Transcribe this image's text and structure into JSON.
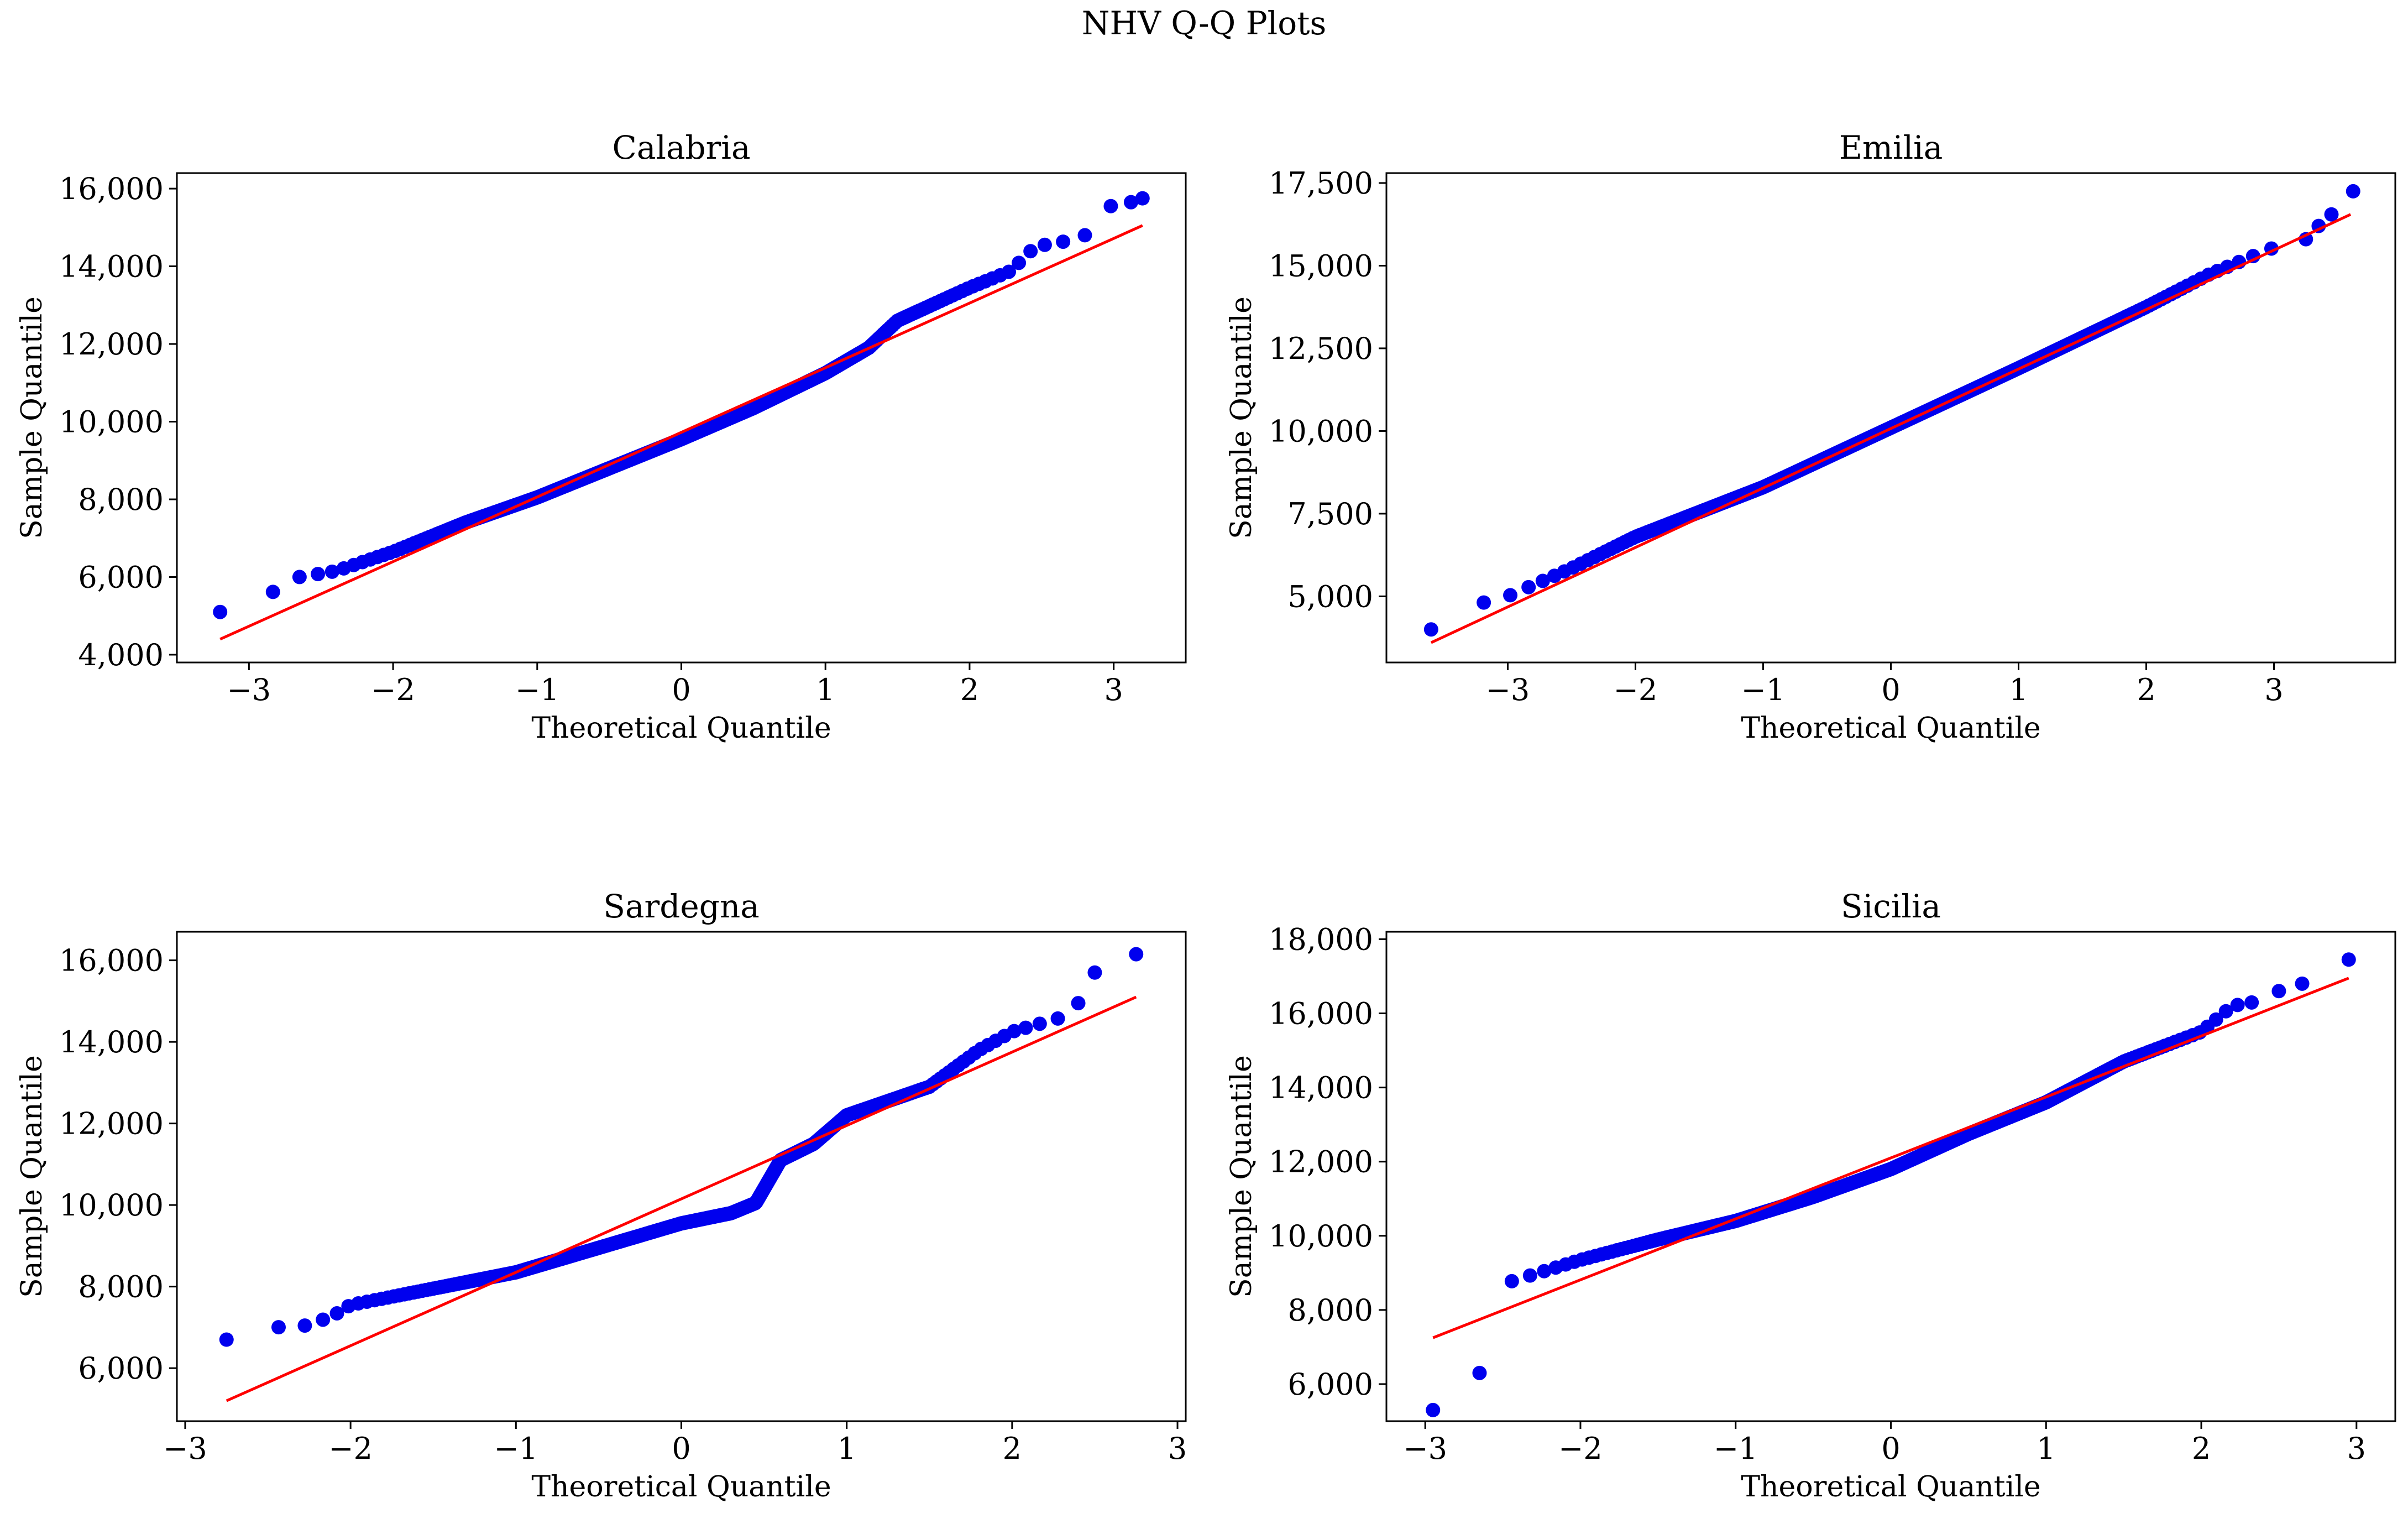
{
  "figure": {
    "title": "NHV Q-Q Plots"
  },
  "colors": {
    "points": "#0000ee",
    "line": "#ff0000",
    "axes": "#000000"
  },
  "chart_data": [
    {
      "type": "scatter",
      "title": "Calabria",
      "xlabel": "Theoretical Quantile",
      "ylabel": "Sample Quantile",
      "xlim": [
        -3.5,
        3.5
      ],
      "ylim": [
        3800,
        16400
      ],
      "xticks": [
        -3,
        -2,
        -1,
        0,
        1,
        2,
        3
      ],
      "xtick_labels": [
        "−3",
        "−2",
        "−1",
        "0",
        "1",
        "2",
        "3"
      ],
      "yticks": [
        4000,
        6000,
        8000,
        10000,
        12000,
        14000,
        16000
      ],
      "ytick_labels": [
        "4,000",
        "6,000",
        "8,000",
        "10,000",
        "12,000",
        "14,000",
        "16,000"
      ],
      "qmax": 3.2,
      "line": {
        "x": [
          -3.2,
          3.2
        ],
        "y": [
          4400,
          15050
        ]
      },
      "anchors": [
        [
          -3.2,
          5100
        ],
        [
          -2.95,
          5500
        ],
        [
          -2.8,
          5650
        ],
        [
          -2.65,
          6000
        ],
        [
          -2.4,
          6150
        ],
        [
          -2.0,
          6650
        ],
        [
          -1.5,
          7400
        ],
        [
          -1.0,
          8050
        ],
        [
          -0.5,
          8800
        ],
        [
          0.0,
          9550
        ],
        [
          0.5,
          10350
        ],
        [
          1.0,
          11250
        ],
        [
          1.3,
          11900
        ],
        [
          1.5,
          12600
        ],
        [
          2.0,
          13450
        ],
        [
          2.3,
          13900
        ],
        [
          2.4,
          14350
        ],
        [
          2.55,
          14600
        ],
        [
          2.7,
          14650
        ]
      ],
      "extra_points": [
        [
          2.8,
          14800
        ],
        [
          2.98,
          15550
        ],
        [
          3.12,
          15650
        ],
        [
          3.2,
          15750
        ]
      ]
    },
    {
      "type": "scatter",
      "title": "Emilia",
      "xlabel": "Theoretical Quantile",
      "ylabel": "Sample Quantile",
      "xlim": [
        -3.95,
        3.95
      ],
      "ylim": [
        3000,
        17800
      ],
      "xticks": [
        -3,
        -2,
        -1,
        0,
        1,
        2,
        3
      ],
      "xtick_labels": [
        "−3",
        "−2",
        "−1",
        "0",
        "1",
        "2",
        "3"
      ],
      "yticks": [
        5000,
        7500,
        10000,
        12500,
        15000,
        17500
      ],
      "ytick_labels": [
        "5,000",
        "7,500",
        "10,000",
        "12,500",
        "15,000",
        "17,500"
      ],
      "qmax": 3.6,
      "line": {
        "x": [
          -3.6,
          3.6
        ],
        "y": [
          3600,
          16550
        ]
      },
      "anchors": [
        [
          -3.6,
          4000
        ],
        [
          -3.4,
          4350
        ],
        [
          -3.2,
          4800
        ],
        [
          -3.0,
          5000
        ],
        [
          -2.5,
          5850
        ],
        [
          -2.0,
          6800
        ],
        [
          -1.0,
          8300
        ],
        [
          0.0,
          10100
        ],
        [
          1.0,
          11900
        ],
        [
          2.0,
          13750
        ],
        [
          2.5,
          14750
        ],
        [
          3.0,
          15550
        ],
        [
          3.15,
          15700
        ]
      ],
      "extra_points": [
        [
          3.25,
          15800
        ],
        [
          3.35,
          16200
        ],
        [
          3.45,
          16550
        ],
        [
          3.62,
          17250
        ]
      ]
    },
    {
      "type": "scatter",
      "title": "Sardegna",
      "xlabel": "Theoretical Quantile",
      "ylabel": "Sample Quantile",
      "xlim": [
        -3.05,
        3.05
      ],
      "ylim": [
        4700,
        16700
      ],
      "xticks": [
        -3,
        -2,
        -1,
        0,
        1,
        2,
        3
      ],
      "xtick_labels": [
        "−3",
        "−2",
        "−1",
        "0",
        "1",
        "2",
        "3"
      ],
      "yticks": [
        6000,
        8000,
        10000,
        12000,
        14000,
        16000
      ],
      "ytick_labels": [
        "6,000",
        "8,000",
        "10,000",
        "12,000",
        "14,000",
        "16,000"
      ],
      "qmax": 2.75,
      "line": {
        "x": [
          -2.75,
          2.75
        ],
        "y": [
          5200,
          15100
        ]
      },
      "anchors": [
        [
          -2.75,
          6700
        ],
        [
          -2.45,
          7000
        ],
        [
          -2.25,
          7050
        ],
        [
          -2.1,
          7300
        ],
        [
          -2.0,
          7550
        ],
        [
          -1.5,
          7950
        ],
        [
          -1.0,
          8350
        ],
        [
          -0.5,
          8950
        ],
        [
          0.0,
          9550
        ],
        [
          0.3,
          9800
        ],
        [
          0.45,
          10050
        ],
        [
          0.6,
          11100
        ],
        [
          0.8,
          11500
        ],
        [
          1.0,
          12200
        ],
        [
          1.5,
          12900
        ],
        [
          1.6,
          13200
        ],
        [
          1.8,
          13800
        ],
        [
          2.0,
          14250
        ],
        [
          2.3,
          14600
        ]
      ],
      "extra_points": [
        [
          2.4,
          14950
        ],
        [
          2.5,
          15700
        ],
        [
          2.75,
          16150
        ]
      ]
    },
    {
      "type": "scatter",
      "title": "Sicilia",
      "xlabel": "Theoretical Quantile",
      "ylabel": "Sample Quantile",
      "xlim": [
        -3.25,
        3.25
      ],
      "ylim": [
        5000,
        18200
      ],
      "xticks": [
        -3,
        -2,
        -1,
        0,
        1,
        2,
        3
      ],
      "xtick_labels": [
        "−3",
        "−2",
        "−1",
        "0",
        "1",
        "2",
        "3"
      ],
      "yticks": [
        6000,
        8000,
        10000,
        12000,
        14000,
        16000,
        18000
      ],
      "ytick_labels": [
        "6,000",
        "8,000",
        "10,000",
        "12,000",
        "14,000",
        "16,000",
        "18,000"
      ],
      "qmax": 2.95,
      "line": {
        "x": [
          -2.95,
          2.95
        ],
        "y": [
          7250,
          16950
        ]
      },
      "anchors": [
        [
          -2.5,
          8700
        ],
        [
          -2.0,
          9350
        ],
        [
          -1.5,
          9900
        ],
        [
          -1.0,
          10400
        ],
        [
          -0.5,
          11050
        ],
        [
          0.0,
          11800
        ],
        [
          0.5,
          12750
        ],
        [
          1.0,
          13600
        ],
        [
          1.5,
          14700
        ],
        [
          2.0,
          15500
        ],
        [
          2.2,
          16200
        ],
        [
          2.4,
          16350
        ]
      ],
      "extra_points": [
        [
          -2.95,
          5300
        ],
        [
          -2.65,
          6300
        ],
        [
          2.5,
          16600
        ],
        [
          2.65,
          16800
        ],
        [
          2.95,
          17450
        ]
      ]
    }
  ]
}
